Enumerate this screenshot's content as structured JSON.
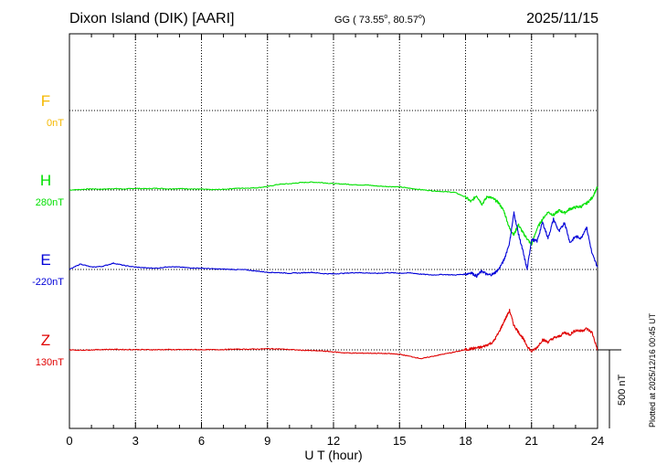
{
  "header": {
    "station": "Dixon Island (DIK)  [AARI]",
    "coords": "GG ( 73.55",
    "coords_mid": ",  80.57",
    "coords_end": ")",
    "date": "2025/11/15"
  },
  "footer": {
    "plotted": "Plotted at 2025/12/16 00:45 UT"
  },
  "chart_data": {
    "type": "line",
    "xlabel": "U T (hour)",
    "xlim": [
      0,
      24
    ],
    "xticks": [
      0,
      3,
      6,
      9,
      12,
      15,
      18,
      21,
      24
    ],
    "scale_bar_label": "500 nT",
    "scale_bar_nT": 500,
    "panel_spacing_nT": 500,
    "colors": {
      "F": "#f5b800",
      "H": "#00e000",
      "E": "#0000d8",
      "Z": "#e00000"
    },
    "series": [
      {
        "name": "F",
        "baseline_label": "0nT",
        "baseline_nT": 0,
        "x": [],
        "y": []
      },
      {
        "name": "H",
        "baseline_label": "280nT",
        "baseline_nT": 280,
        "x": [
          0,
          0.5,
          1,
          1.5,
          2,
          2.5,
          3,
          3.5,
          4,
          4.5,
          5,
          5.5,
          6,
          6.5,
          7,
          7.5,
          8,
          8.5,
          9,
          9.5,
          10,
          10.5,
          11,
          11.5,
          12,
          12.5,
          13,
          13.5,
          14,
          14.5,
          15,
          15.5,
          16,
          16.5,
          17,
          17.5,
          18,
          18.25,
          18.5,
          18.75,
          19,
          19.25,
          19.5,
          19.75,
          20,
          20.2,
          20.4,
          20.6,
          20.8,
          21,
          21.25,
          21.5,
          21.75,
          22,
          22.25,
          22.5,
          22.75,
          23,
          23.25,
          23.5,
          23.75,
          24
        ],
        "y": [
          280,
          283,
          287,
          285,
          289,
          286,
          290,
          288,
          291,
          287,
          289,
          287,
          285,
          282,
          284,
          290,
          292,
          294,
          302,
          316,
          320,
          327,
          330,
          327,
          320,
          318,
          313,
          312,
          305,
          302,
          300,
          290,
          282,
          275,
          270,
          265,
          235,
          205,
          245,
          190,
          240,
          225,
          200,
          145,
          35,
          -5,
          60,
          10,
          -30,
          -70,
          35,
          95,
          140,
          120,
          150,
          135,
          160,
          170,
          175,
          195,
          230,
          300
        ]
      },
      {
        "name": "E",
        "baseline_label": "-220nT",
        "baseline_nT": -220,
        "x": [
          0,
          0.5,
          1,
          1.5,
          2,
          2.5,
          3,
          3.5,
          4,
          4.5,
          5,
          5.5,
          6,
          6.5,
          7,
          7.5,
          8,
          8.5,
          9,
          9.5,
          10,
          10.5,
          11,
          11.5,
          12,
          12.5,
          13,
          13.5,
          14,
          14.5,
          15,
          15.5,
          16,
          16.5,
          17,
          17.5,
          18,
          18.25,
          18.5,
          18.75,
          19,
          19.25,
          19.5,
          19.75,
          20,
          20.2,
          20.4,
          20.6,
          20.8,
          21,
          21.25,
          21.5,
          21.75,
          22,
          22.25,
          22.5,
          22.75,
          23,
          23.25,
          23.5,
          23.75,
          24
        ],
        "y": [
          -220,
          -185,
          -205,
          -200,
          -180,
          -195,
          -205,
          -210,
          -212,
          -202,
          -205,
          -210,
          -212,
          -216,
          -218,
          -220,
          -222,
          -230,
          -238,
          -240,
          -244,
          -242,
          -238,
          -246,
          -248,
          -244,
          -240,
          -242,
          -245,
          -240,
          -244,
          -242,
          -250,
          -255,
          -252,
          -255,
          -250,
          -240,
          -262,
          -230,
          -255,
          -250,
          -220,
          -160,
          -50,
          140,
          10,
          -100,
          -220,
          -30,
          -40,
          80,
          -20,
          100,
          20,
          80,
          -50,
          -10,
          -20,
          50,
          -120,
          -205
        ]
      },
      {
        "name": "Z",
        "baseline_label": "130nT",
        "baseline_nT": 130,
        "x": [
          0,
          0.5,
          1,
          1.5,
          2,
          2.5,
          3,
          3.5,
          4,
          4.5,
          5,
          5.5,
          6,
          6.5,
          7,
          7.5,
          8,
          8.5,
          9,
          9.5,
          10,
          10.5,
          11,
          11.5,
          12,
          12.5,
          13,
          13.5,
          14,
          14.5,
          15,
          15.5,
          16,
          16.5,
          17,
          17.5,
          18,
          18.25,
          18.5,
          18.75,
          19,
          19.25,
          19.5,
          19.75,
          20,
          20.2,
          20.4,
          20.6,
          20.8,
          21,
          21.25,
          21.5,
          21.75,
          22,
          22.25,
          22.5,
          22.75,
          23,
          23.25,
          23.5,
          23.75,
          24
        ],
        "y": [
          130,
          128,
          130,
          132,
          133,
          132,
          132,
          131,
          131,
          132,
          131,
          132,
          131,
          131,
          132,
          134,
          134,
          135,
          137,
          136,
          132,
          128,
          125,
          123,
          117,
          111,
          109,
          109,
          108,
          106,
          102,
          88,
          74,
          89,
          103,
          116,
          131,
          137,
          142,
          147,
          163,
          179,
          237,
          310,
          380,
          285,
          245,
          205,
          155,
          120,
          145,
          195,
          180,
          205,
          215,
          240,
          228,
          255,
          250,
          265,
          240,
          130
        ]
      }
    ]
  }
}
